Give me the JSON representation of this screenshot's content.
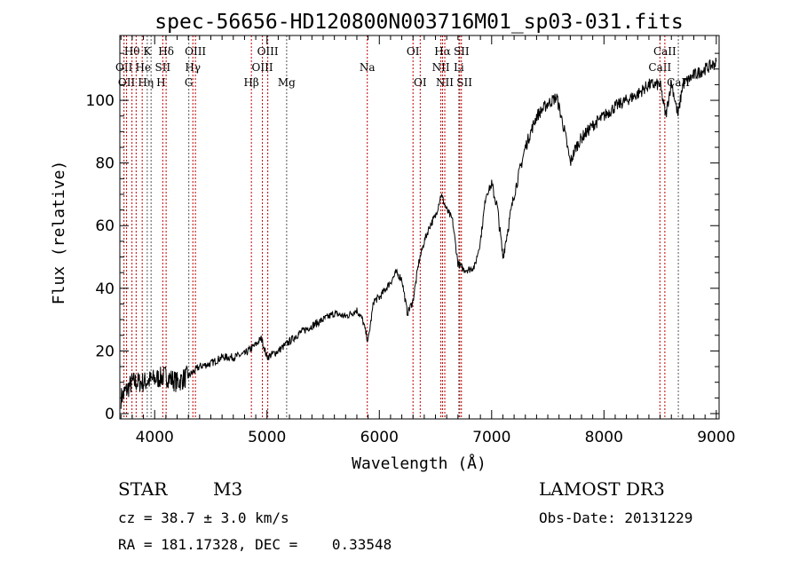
{
  "chart_data": {
    "type": "line",
    "title": "spec-56656-HD120800N003716M01_sp03-031.fits",
    "xlabel": "Wavelength (Å)",
    "ylabel": "Flux (relative)",
    "xlim": [
      3690,
      9025
    ],
    "ylim": [
      -1.7,
      120.7
    ],
    "xticks": [
      4000,
      5000,
      6000,
      7000,
      8000,
      9000
    ],
    "yticks": [
      0,
      20,
      40,
      60,
      80,
      100
    ],
    "series": [
      {
        "name": "spectrum",
        "x": [
          3700,
          3800,
          3900,
          4000,
          4100,
          4200,
          4300,
          4400,
          4500,
          4600,
          4700,
          4800,
          4900,
          4950,
          5000,
          5100,
          5200,
          5300,
          5400,
          5500,
          5600,
          5700,
          5800,
          5850,
          5900,
          5950,
          6000,
          6100,
          6150,
          6200,
          6250,
          6300,
          6350,
          6400,
          6450,
          6500,
          6550,
          6600,
          6650,
          6700,
          6750,
          6800,
          6850,
          6900,
          6950,
          7000,
          7050,
          7100,
          7150,
          7200,
          7300,
          7400,
          7500,
          7580,
          7650,
          7700,
          7750,
          7800,
          7900,
          8000,
          8100,
          8200,
          8300,
          8400,
          8500,
          8550,
          8600,
          8660,
          8700,
          8800,
          8900,
          9000
        ],
        "y": [
          5,
          10,
          10,
          11,
          12,
          10,
          12,
          15,
          16,
          18,
          18,
          19,
          22,
          24,
          18,
          20,
          23,
          26,
          28,
          30,
          32,
          31,
          33,
          30,
          23,
          36,
          37,
          42,
          45,
          43,
          32,
          36,
          48,
          55,
          60,
          63,
          70,
          65,
          62,
          48,
          46,
          46,
          47,
          55,
          70,
          73,
          66,
          50,
          60,
          70,
          85,
          95,
          99,
          101,
          90,
          80,
          85,
          88,
          92,
          95,
          98,
          100,
          102,
          105,
          105,
          95,
          106,
          95,
          105,
          108,
          110,
          112
        ]
      }
    ],
    "lines": [
      {
        "w": 3727,
        "label": "OII",
        "row": 2,
        "c": "#c00000"
      },
      {
        "w": 3750,
        "label": "OII",
        "row": 3,
        "c": "#c00000"
      },
      {
        "w": 3798,
        "label": "Hθ",
        "row": 1,
        "c": "#c00000"
      },
      {
        "w": 3835,
        "label": "Hη",
        "row": 3,
        "c": "#c00000"
      },
      {
        "w": 3889,
        "label": "He",
        "row": 2,
        "c": "#c00000"
      },
      {
        "w": 3934,
        "label": "K",
        "row": 1,
        "c": "#555555"
      },
      {
        "w": 3968,
        "label": "H",
        "row": 3,
        "c": "#555555"
      },
      {
        "w": 4072,
        "label": "SII",
        "row": 2,
        "c": "#c00000"
      },
      {
        "w": 4102,
        "label": "Hδ",
        "row": 1,
        "c": "#c00000"
      },
      {
        "w": 4304,
        "label": "G",
        "row": 3,
        "c": "#555555"
      },
      {
        "w": 4340,
        "label": "Hγ",
        "row": 2,
        "c": "#c00000"
      },
      {
        "w": 4363,
        "label": "OIII",
        "row": 1,
        "c": "#c00000"
      },
      {
        "w": 4861,
        "label": "Hβ",
        "row": 3,
        "c": "#c00000"
      },
      {
        "w": 4959,
        "label": "OIII",
        "row": 2,
        "c": "#c00000"
      },
      {
        "w": 5007,
        "label": "OIII",
        "row": 1,
        "c": "#c00000"
      },
      {
        "w": 5175,
        "label": "Mg",
        "row": 3,
        "c": "#555555"
      },
      {
        "w": 5893,
        "label": "Na",
        "row": 2,
        "c": "#c00000"
      },
      {
        "w": 6300,
        "label": "OI",
        "row": 1,
        "c": "#c00000"
      },
      {
        "w": 6364,
        "label": "OI",
        "row": 3,
        "c": "#c00000"
      },
      {
        "w": 6548,
        "label": "NII",
        "row": 2,
        "c": "#c00000"
      },
      {
        "w": 6563,
        "label": "Hα",
        "row": 1,
        "c": "#c00000"
      },
      {
        "w": 6583,
        "label": "NII",
        "row": 3,
        "c": "#c00000"
      },
      {
        "w": 6708,
        "label": "Li",
        "row": 2,
        "c": "#555555"
      },
      {
        "w": 6716,
        "label": "SII",
        "row": 3,
        "c": "#c00000"
      },
      {
        "w": 6731,
        "label": "SII",
        "row": 1,
        "c": "#c00000"
      },
      {
        "w": 8498,
        "label": "CaII",
        "row": 2,
        "c": "#c00000"
      },
      {
        "w": 8542,
        "label": "CaII",
        "row": 1,
        "c": "#c00000"
      },
      {
        "w": 8662,
        "label": "CaII",
        "row": 3,
        "c": "#555555"
      }
    ]
  },
  "info": {
    "class": "STAR",
    "subclass": "M3",
    "cz": "cz = 38.7 ± 3.0 km/s",
    "radec": "RA = 181.17328, DEC =    0.33548",
    "survey": "LAMOST DR3",
    "obsdate": "Obs-Date: 20131229"
  }
}
